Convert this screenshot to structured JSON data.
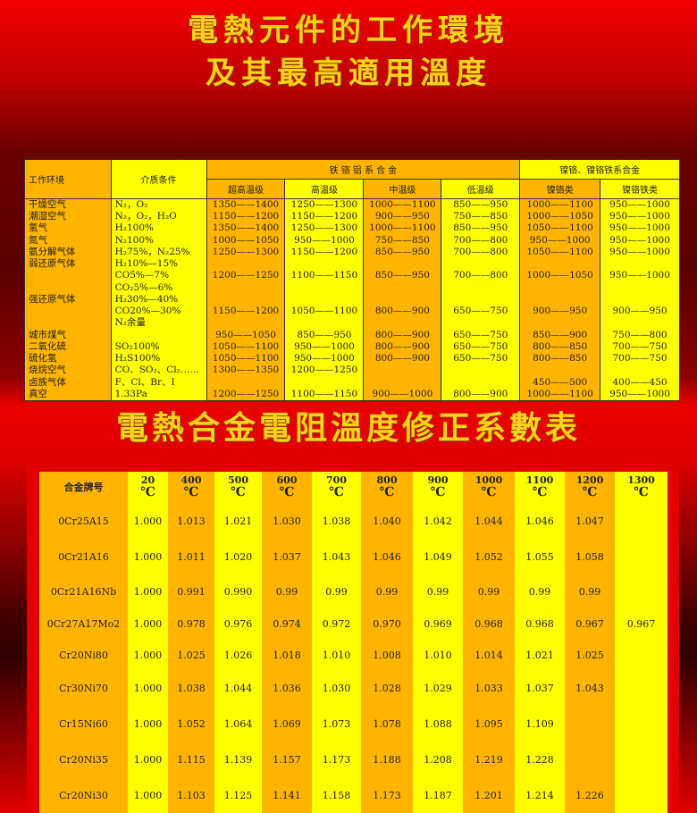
{
  "titles": {
    "line1": "電熱元件的工作環境",
    "line2": "及其最高適用溫度",
    "line3": "電熱合金電阻溫度修正系數表"
  },
  "colors": {
    "orange": "#ffb400",
    "yellow": "#ffff00",
    "title": "#ffd21a",
    "background": "#e00000"
  },
  "table1": {
    "headers": {
      "env": "工作环境",
      "medium": "介质条件",
      "fecral": "铁 铬 铝 系 合 金",
      "nicr": "镍铬、镍铬铁系合金",
      "sub": [
        "超高温级",
        "高温级",
        "中温级",
        "低温级",
        "镍铬类",
        "镍铬铁类"
      ]
    },
    "rows": [
      {
        "env": "干燥空气",
        "medium": "N₂，O₂",
        "v": [
          "1350——1400",
          "1250——1300",
          "1000——1100",
          "850——950",
          "1000——1100",
          "950——1000"
        ]
      },
      {
        "env": "潮湿空气",
        "medium": "N₂，O₂，H₂O",
        "v": [
          "1150——1200",
          "1150——1200",
          "900——950",
          "750——850",
          "1000——1050",
          "950——1000"
        ]
      },
      {
        "env": "氢气",
        "medium": "H₂100%",
        "v": [
          "1350——1400",
          "1250——1300",
          "1000——1100",
          "850——950",
          "1050——1100",
          "950——1000"
        ]
      },
      {
        "env": "氮气",
        "medium": "N₂100%",
        "v": [
          "1000——1050",
          "950——1000",
          "750——850",
          "700——800",
          "950——1000",
          "950——1000"
        ]
      },
      {
        "env": "氨分解气体",
        "medium": "H₂75%，N₂25%",
        "v": [
          "1250——1300",
          "1150——1200",
          "850——950",
          "700——800",
          "1050——1100",
          "950——1000"
        ]
      },
      {
        "env": "弱还原气体",
        "medium": "H₂10%—15%",
        "v": [
          "",
          "",
          "",
          "",
          "",
          ""
        ]
      },
      {
        "env": "",
        "medium": "CO5%—7%",
        "v": [
          "1200——1250",
          "1100——1150",
          "850——950",
          "700——800",
          "1000——1050",
          "950——1000"
        ]
      },
      {
        "env": "",
        "medium": "CO₂5%—6%",
        "v": [
          "",
          "",
          "",
          "",
          "",
          ""
        ]
      },
      {
        "env": "强还原气体",
        "medium": "H₂30%—40%",
        "v": [
          "",
          "",
          "",
          "",
          "",
          ""
        ]
      },
      {
        "env": "",
        "medium": "CO20%—30%",
        "v": [
          "1150——1200",
          "1050——1100",
          "800——900",
          "650——750",
          "900——950",
          "900——950"
        ]
      },
      {
        "env": "",
        "medium": "N₂余量",
        "v": [
          "",
          "",
          "",
          "",
          "",
          ""
        ]
      },
      {
        "env": "城市煤气",
        "medium": "",
        "v": [
          "950——1050",
          "850——950",
          "800——900",
          "650——750",
          "850——900",
          "750——800"
        ]
      },
      {
        "env": "二氧化硫",
        "medium": "SO₂100%",
        "v": [
          "1050——1100",
          "950——1000",
          "800——900",
          "650——750",
          "800——850",
          "700——750"
        ]
      },
      {
        "env": "硫化氢",
        "medium": "H₂S100%",
        "v": [
          "1050——1100",
          "950——1000",
          "800——900",
          "650——750",
          "800——850",
          "700——750"
        ]
      },
      {
        "env": "烧烷空气",
        "medium": "CO、SO₂、Cl₂……",
        "v": [
          "1300——1350",
          "1200——1250",
          "",
          "",
          "",
          ""
        ]
      },
      {
        "env": "卤族气体",
        "medium": "F、Cl、Br、I",
        "v": [
          "",
          "",
          "",
          "",
          "450——500",
          "400——450"
        ]
      },
      {
        "env": "真空",
        "medium": "1.33Pa",
        "v": [
          "1200——1250",
          "1100——1150",
          "900——1000",
          "800——900",
          "1000——1100",
          "950——1000"
        ]
      }
    ]
  },
  "table2": {
    "name_header": "合金牌号",
    "unit": "℃",
    "temps": [
      "20",
      "400",
      "500",
      "600",
      "700",
      "800",
      "900",
      "1000",
      "1100",
      "1200",
      "1300"
    ],
    "rows": [
      {
        "name": "0Cr25A15",
        "v": [
          "1.000",
          "1.013",
          "1.021",
          "1.030",
          "1.038",
          "1.040",
          "1.042",
          "1.044",
          "1.046",
          "1.047",
          ""
        ]
      },
      {
        "name": "0Cr21A16",
        "v": [
          "1.000",
          "1.011",
          "1.020",
          "1.037",
          "1.043",
          "1.046",
          "1.049",
          "1.052",
          "1.055",
          "1.058",
          ""
        ]
      },
      {
        "name": "0Cr21A16Nb",
        "v": [
          "1.000",
          "0.991",
          "0.990",
          "0.99",
          "0.99",
          "0.99",
          "0.99",
          "0.99",
          "0.99",
          "0.99",
          ""
        ]
      },
      {
        "name": "0Cr27A17Mo2",
        "v": [
          "1.000",
          "0.978",
          "0.976",
          "0.974",
          "0.972",
          "0.970",
          "0.969",
          "0.968",
          "0.968",
          "0.967",
          "0.967"
        ]
      },
      {
        "name": "Cr20Ni80",
        "v": [
          "1.000",
          "1.025",
          "1.026",
          "1.018",
          "1.010",
          "1.008",
          "1.010",
          "1.014",
          "1.021",
          "1.025",
          ""
        ]
      },
      {
        "name": "Cr30Ni70",
        "v": [
          "1.000",
          "1.038",
          "1.044",
          "1.036",
          "1.030",
          "1.028",
          "1.029",
          "1.033",
          "1.037",
          "1.043",
          ""
        ]
      },
      {
        "name": "Cr15Ni60",
        "v": [
          "1.000",
          "1.052",
          "1.064",
          "1.069",
          "1.073",
          "1.078",
          "1.088",
          "1.095",
          "1.109",
          "",
          ""
        ]
      },
      {
        "name": "Cr20Ni35",
        "v": [
          "1.000",
          "1.115",
          "1.139",
          "1.157",
          "1.173",
          "1.188",
          "1.208",
          "1.219",
          "1.228",
          "",
          ""
        ]
      },
      {
        "name": "Cr20Ni30",
        "v": [
          "1.000",
          "1.103",
          "1.125",
          "1.141",
          "1.158",
          "1.173",
          "1.187",
          "1.201",
          "1.214",
          "1.226",
          ""
        ]
      }
    ]
  }
}
